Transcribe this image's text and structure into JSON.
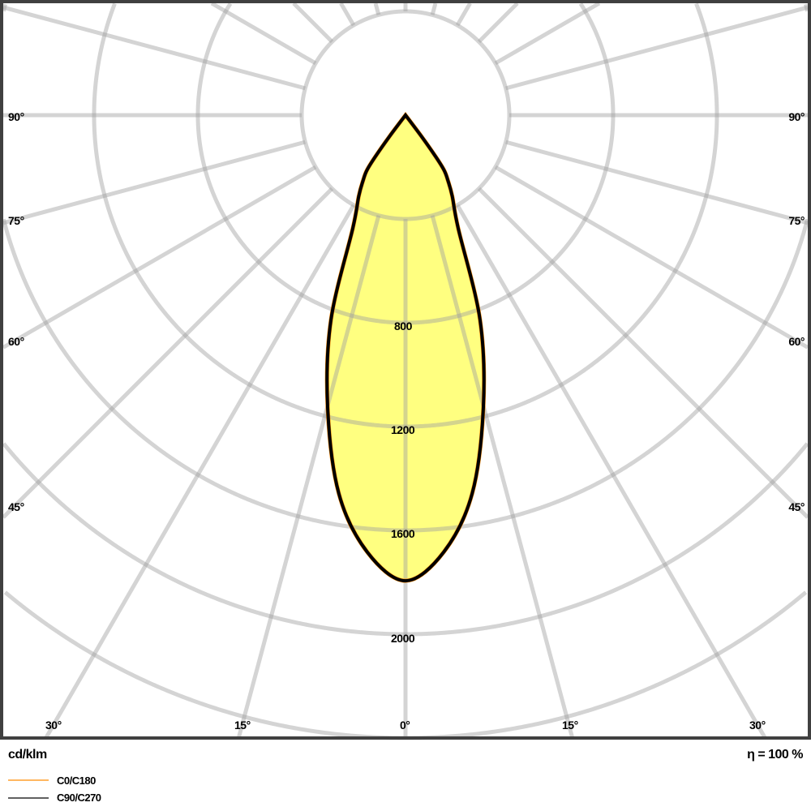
{
  "chart_data": {
    "type": "polar",
    "unit_label": "cd/klm",
    "efficiency_label": "η = 100 %",
    "radial_ticks": [
      400,
      800,
      1200,
      1600,
      2000,
      2400
    ],
    "radial_tick_labels": [
      "800",
      "1200",
      "1600",
      "2000"
    ],
    "angle_labels_bottom": [
      "30°",
      "15°",
      "0°",
      "15°",
      "30°"
    ],
    "angle_labels_side": [
      "90°",
      "75°",
      "60°",
      "45°"
    ],
    "angle_step_deg": 15,
    "grid": true,
    "legend_placement": "bottom-left",
    "series": [
      {
        "name": "C0/C180",
        "color": "#ff8c00",
        "angles": [
          0,
          5,
          10,
          15,
          20,
          25,
          30,
          33,
          35,
          36,
          37,
          38
        ],
        "values": [
          1794,
          1690,
          1480,
          1160,
          840,
          480,
          360,
          300,
          260,
          200,
          100,
          0
        ]
      },
      {
        "name": "C90/C270",
        "color": "#000000",
        "angles": [
          0,
          5,
          10,
          15,
          20,
          25,
          30,
          33,
          35,
          36,
          37,
          38
        ],
        "values": [
          1794,
          1690,
          1480,
          1160,
          840,
          480,
          360,
          300,
          260,
          200,
          100,
          0
        ]
      }
    ],
    "fill_color": "#ffff80"
  }
}
